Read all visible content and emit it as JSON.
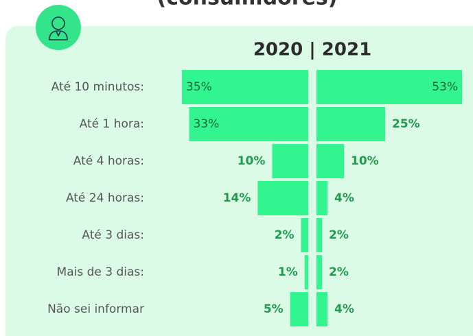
{
  "chart_data": {
    "type": "butterfly",
    "heading": "(consumidores)",
    "title": "2020 | 2021",
    "categories": [
      "Até 10 minutos:",
      "Até 1 hora:",
      "Até 4 horas:",
      "Até 24 horas:",
      "Até 3 dias:",
      "Mais de 3 dias:",
      "Não sei informar"
    ],
    "series": [
      {
        "color": "#33f590",
        "values": [
          35,
          33,
          10,
          14,
          2,
          1,
          5
        ]
      },
      {
        "color": "#33f590",
        "values": [
          53,
          25,
          10,
          4,
          2,
          2,
          4
        ]
      }
    ]
  }
}
